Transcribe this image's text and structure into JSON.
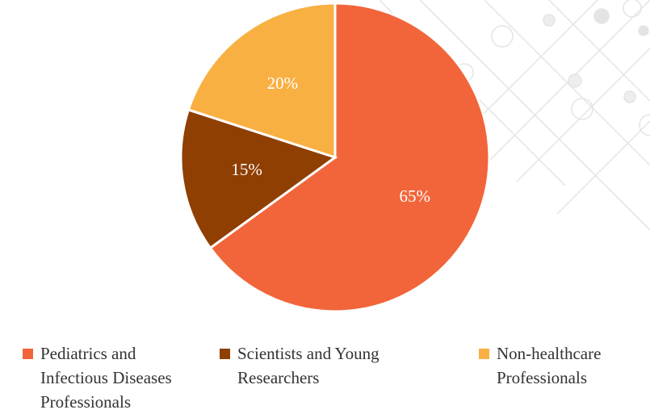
{
  "chart_data": {
    "type": "pie",
    "categories": [
      "Pediatrics and Infectious Diseases Professionals",
      "Scientists and Young Researchers",
      "Non-healthcare Professionals"
    ],
    "values": [
      65,
      15,
      20
    ],
    "value_labels": [
      "65%",
      "15%",
      "20%"
    ],
    "colors": [
      "#f2653a",
      "#8f3f02",
      "#f9b042"
    ],
    "start_angle": 90,
    "direction": "clockwise",
    "legend": "bottom"
  }
}
